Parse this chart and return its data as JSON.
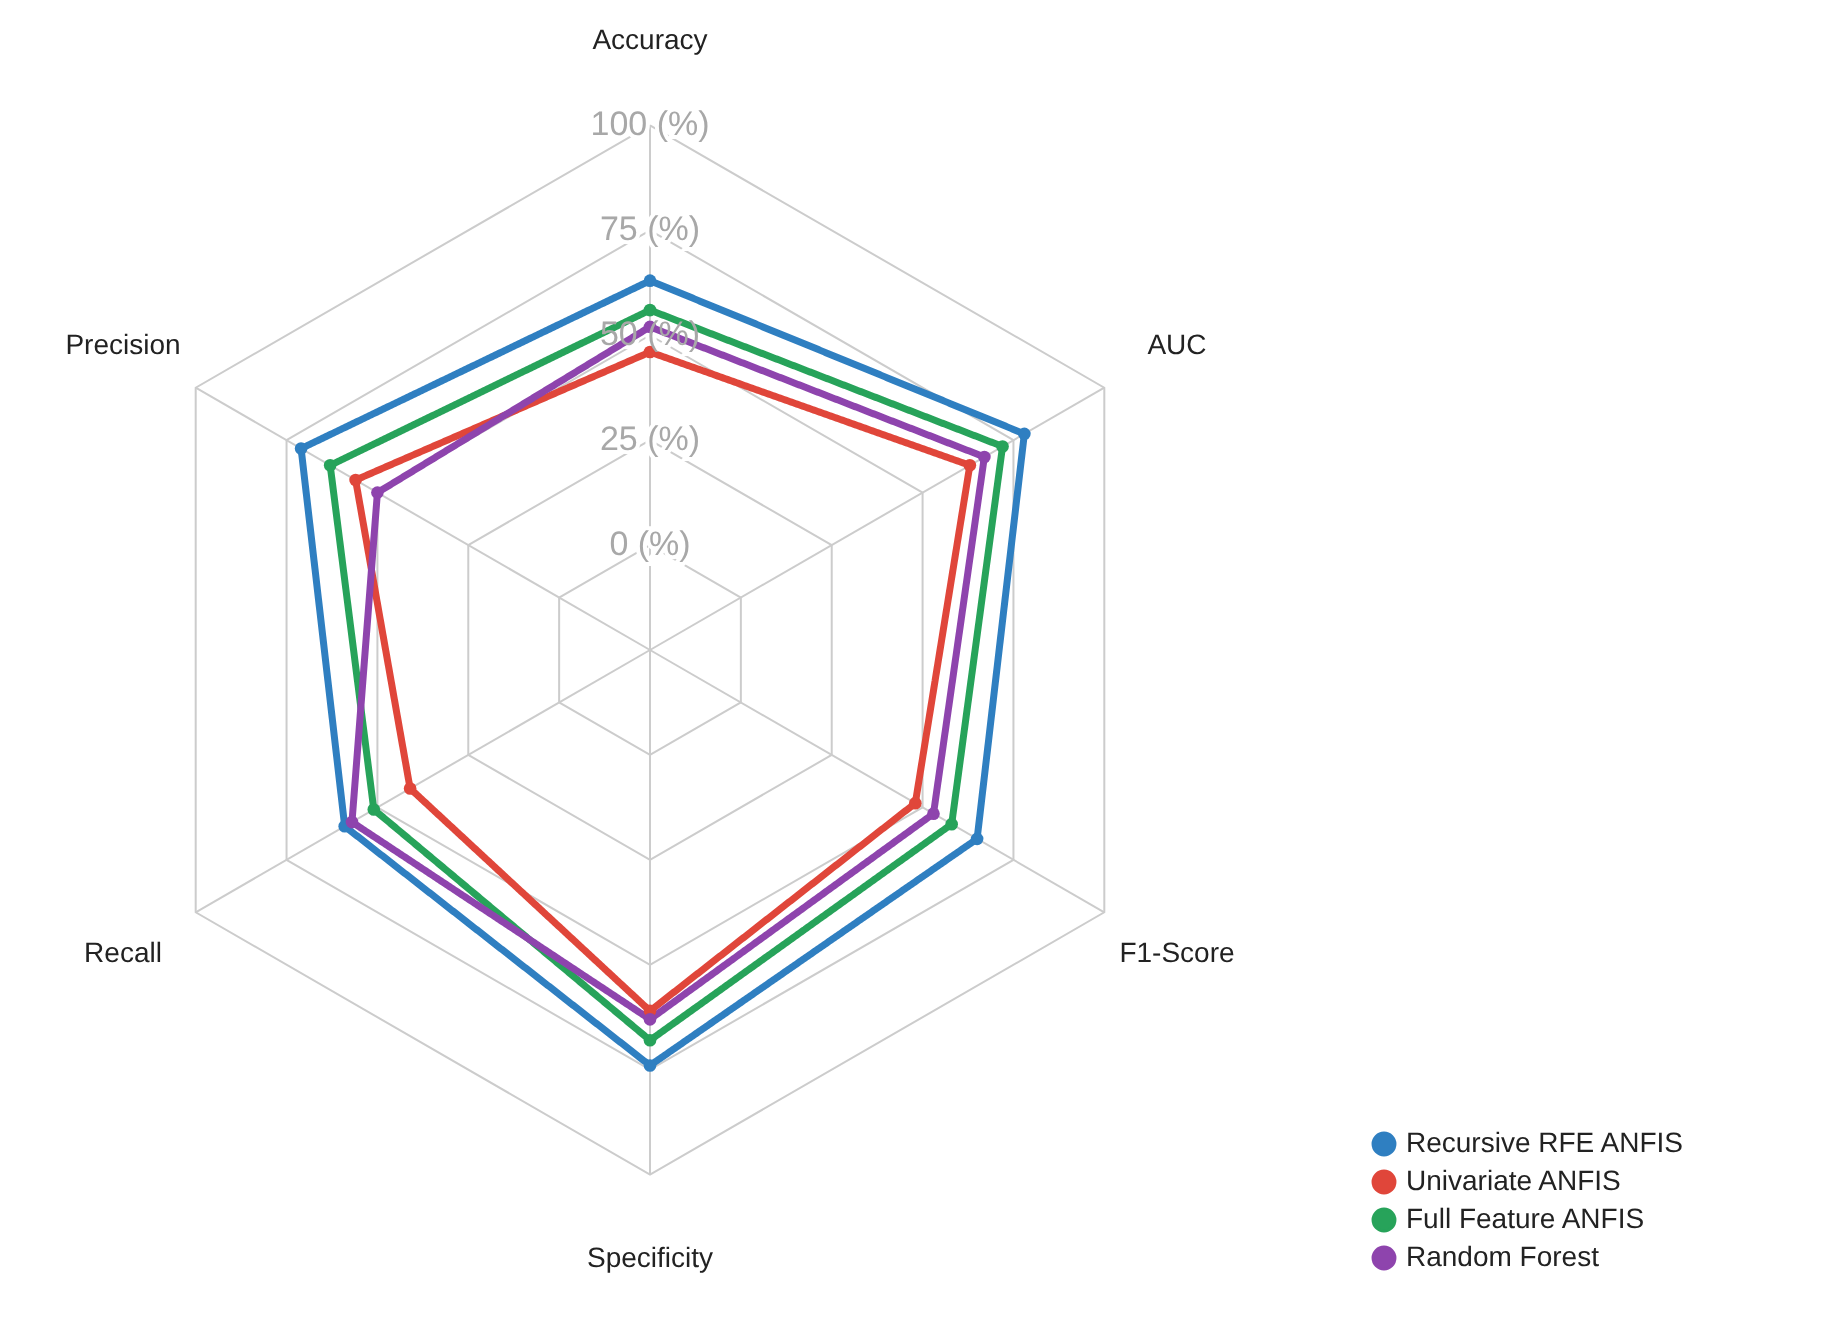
{
  "chart_data": {
    "type": "radar",
    "categories": [
      "Accuracy",
      "AUC",
      "F1-Score",
      "Specificity",
      "Recall",
      "Precision"
    ],
    "ylim": [
      -25,
      100
    ],
    "yticks": [
      {
        "value": 0,
        "label": "0 (%)"
      },
      {
        "value": 25,
        "label": "25 (%)"
      },
      {
        "value": 50,
        "label": "50 (%)"
      },
      {
        "value": 75,
        "label": "75 (%)"
      },
      {
        "value": 100,
        "label": "100 (%)"
      }
    ],
    "series": [
      {
        "name": "Recursive RFE ANFIS",
        "color": "#2f7fc1",
        "values": [
          63,
          78,
          65,
          74,
          59,
          71
        ]
      },
      {
        "name": "Univariate ANFIS",
        "color": "#e0463a",
        "values": [
          46,
          63,
          48,
          61,
          41,
          56
        ]
      },
      {
        "name": "Full Feature ANFIS",
        "color": "#27a35a",
        "values": [
          56,
          72,
          58,
          68,
          51,
          63
        ]
      },
      {
        "name": "Random Forest",
        "color": "#8e44ad",
        "values": [
          52,
          67,
          53,
          63,
          57,
          50
        ]
      }
    ],
    "grid": true,
    "legend": "bottom right",
    "marker": "circle",
    "line_style": "solid"
  }
}
